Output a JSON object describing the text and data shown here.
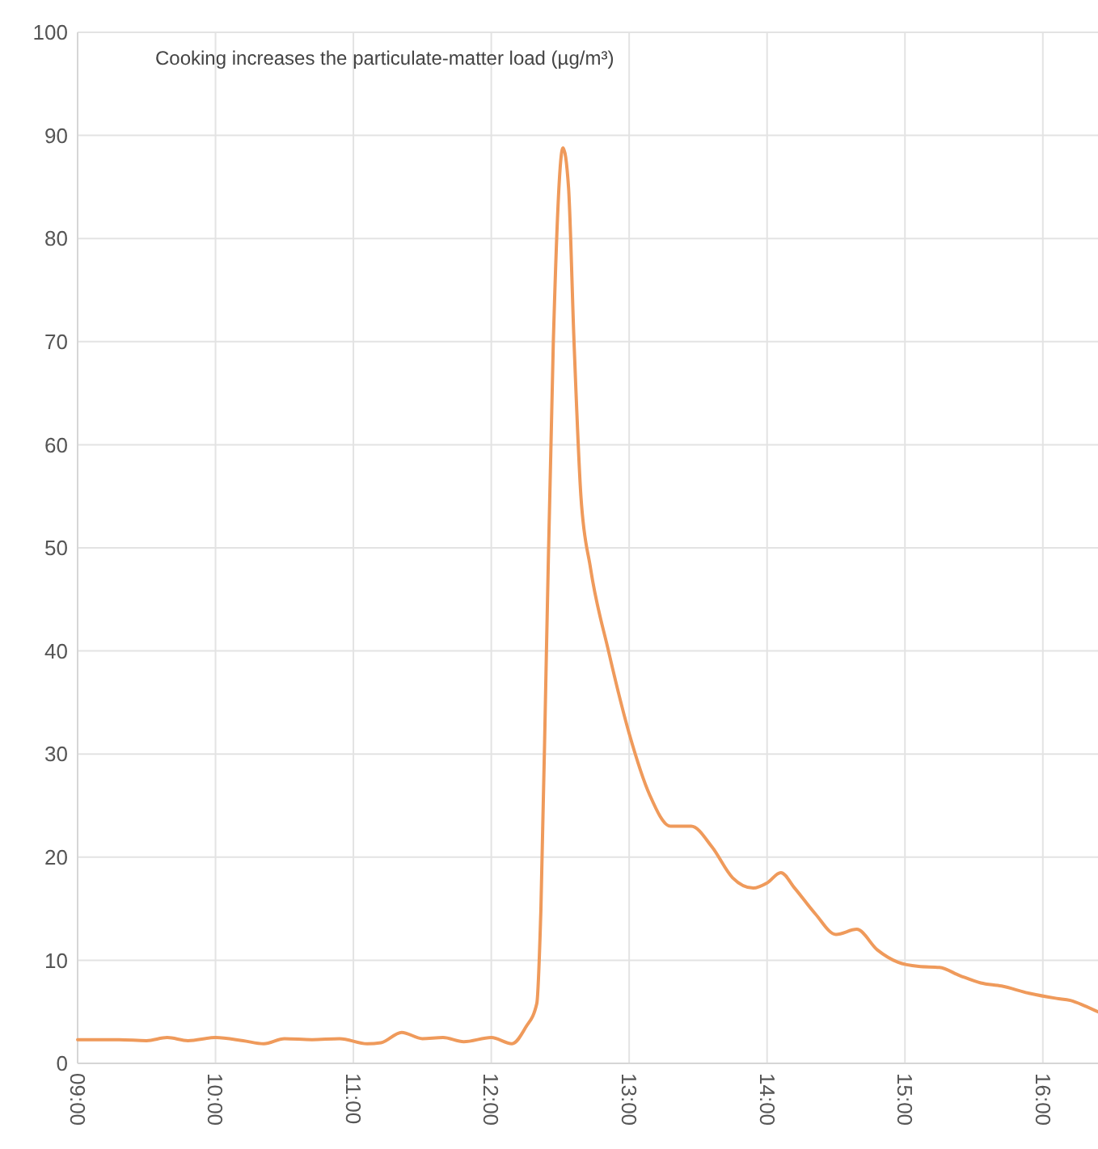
{
  "chart_data": {
    "type": "line",
    "title": "Cooking increases the particulate-matter load (µg/m³)",
    "xlim": [
      9,
      16.4
    ],
    "xticks": [
      {
        "value": 9,
        "label": "09:00"
      },
      {
        "value": 10,
        "label": "10:00"
      },
      {
        "value": 11,
        "label": "11:00"
      },
      {
        "value": 12,
        "label": "12:00"
      },
      {
        "value": 13,
        "label": "13:00"
      },
      {
        "value": 14,
        "label": "14:00"
      },
      {
        "value": 15,
        "label": "15:00"
      },
      {
        "value": 16,
        "label": "16:00"
      }
    ],
    "ylim": [
      0,
      100
    ],
    "yticks": [
      0,
      10,
      20,
      30,
      40,
      50,
      60,
      70,
      80,
      90,
      100
    ],
    "grid": true,
    "x": [
      9.0,
      9.3,
      9.5,
      9.65,
      9.8,
      10.0,
      10.2,
      10.35,
      10.5,
      10.7,
      10.9,
      11.1,
      11.2,
      11.35,
      11.5,
      11.65,
      11.8,
      12.0,
      12.15,
      12.25,
      12.33,
      12.36,
      12.4,
      12.45,
      12.52,
      12.56,
      12.6,
      12.65,
      12.72,
      12.85,
      13.0,
      13.15,
      13.3,
      13.45,
      13.6,
      13.75,
      13.9,
      14.0,
      14.1,
      14.2,
      14.35,
      14.5,
      14.65,
      14.8,
      14.95,
      15.1,
      15.25,
      15.4,
      15.55,
      15.7,
      15.9,
      16.1,
      16.2,
      16.3,
      16.4
    ],
    "series": [
      {
        "color": "#ef9a5b",
        "values": [
          2.3,
          2.3,
          2.2,
          2.5,
          2.2,
          2.5,
          2.2,
          1.9,
          2.4,
          2.3,
          2.4,
          1.9,
          2.0,
          3.0,
          2.4,
          2.5,
          2.1,
          2.5,
          1.9,
          3.5,
          5.8,
          15,
          40,
          70,
          88.8,
          85,
          70,
          55,
          48,
          40,
          32,
          26,
          23,
          23,
          21,
          18,
          17,
          17.5,
          18.5,
          17,
          14.5,
          12.5,
          13,
          11,
          9.8,
          9.4,
          9.3,
          8.5,
          7.8,
          7.5,
          6.8,
          6.3,
          6.1,
          5.6,
          5.0
        ]
      }
    ]
  }
}
